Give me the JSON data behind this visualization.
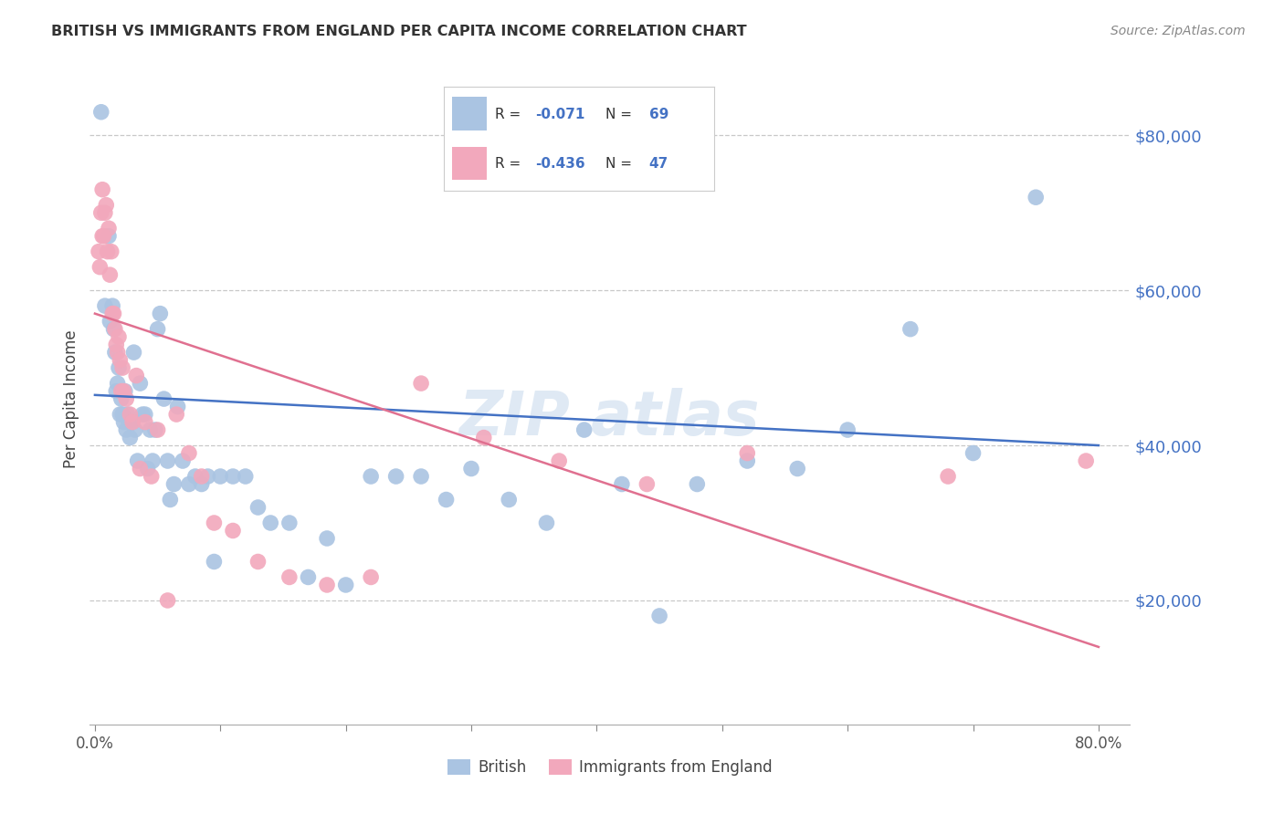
{
  "title": "BRITISH VS IMMIGRANTS FROM ENGLAND PER CAPITA INCOME CORRELATION CHART",
  "source": "Source: ZipAtlas.com",
  "ylabel": "Per Capita Income",
  "ytick_labels": [
    "$20,000",
    "$40,000",
    "$60,000",
    "$80,000"
  ],
  "ytick_values": [
    20000,
    40000,
    60000,
    80000
  ],
  "ylim": [
    4000,
    88000
  ],
  "xlim": [
    -0.004,
    0.825
  ],
  "color_blue": "#aac4e2",
  "color_pink": "#f2a8bc",
  "line_blue": "#4472c4",
  "line_pink": "#e07090",
  "text_color_blue": "#4472c4",
  "grid_color": "#c8c8c8",
  "background": "#ffffff",
  "blue_dots_x": [
    0.005,
    0.011,
    0.015,
    0.016,
    0.017,
    0.018,
    0.019,
    0.02,
    0.021,
    0.022,
    0.023,
    0.024,
    0.025,
    0.026,
    0.027,
    0.028,
    0.03,
    0.031,
    0.032,
    0.034,
    0.036,
    0.038,
    0.04,
    0.042,
    0.044,
    0.046,
    0.048,
    0.05,
    0.052,
    0.055,
    0.058,
    0.06,
    0.063,
    0.066,
    0.07,
    0.075,
    0.08,
    0.085,
    0.09,
    0.095,
    0.1,
    0.11,
    0.12,
    0.13,
    0.14,
    0.155,
    0.17,
    0.185,
    0.2,
    0.22,
    0.24,
    0.26,
    0.28,
    0.3,
    0.33,
    0.36,
    0.39,
    0.42,
    0.45,
    0.48,
    0.52,
    0.56,
    0.6,
    0.65,
    0.7,
    0.75,
    0.008,
    0.012,
    0.014
  ],
  "blue_dots_y": [
    83000,
    67000,
    55000,
    52000,
    47000,
    48000,
    50000,
    44000,
    46000,
    44000,
    43000,
    47000,
    42000,
    44000,
    43000,
    41000,
    43000,
    52000,
    42000,
    38000,
    48000,
    44000,
    44000,
    37000,
    42000,
    38000,
    42000,
    55000,
    57000,
    46000,
    38000,
    33000,
    35000,
    45000,
    38000,
    35000,
    36000,
    35000,
    36000,
    25000,
    36000,
    36000,
    36000,
    32000,
    30000,
    30000,
    23000,
    28000,
    22000,
    36000,
    36000,
    36000,
    33000,
    37000,
    33000,
    30000,
    42000,
    35000,
    18000,
    35000,
    38000,
    37000,
    42000,
    55000,
    39000,
    72000,
    58000,
    56000,
    58000
  ],
  "pink_dots_x": [
    0.003,
    0.004,
    0.005,
    0.006,
    0.006,
    0.007,
    0.008,
    0.009,
    0.01,
    0.011,
    0.012,
    0.013,
    0.014,
    0.015,
    0.016,
    0.017,
    0.018,
    0.019,
    0.02,
    0.021,
    0.022,
    0.023,
    0.025,
    0.028,
    0.03,
    0.033,
    0.036,
    0.04,
    0.045,
    0.05,
    0.058,
    0.065,
    0.075,
    0.085,
    0.095,
    0.11,
    0.13,
    0.155,
    0.185,
    0.22,
    0.26,
    0.31,
    0.37,
    0.44,
    0.52,
    0.68,
    0.79
  ],
  "pink_dots_y": [
    65000,
    63000,
    70000,
    73000,
    67000,
    67000,
    70000,
    71000,
    65000,
    68000,
    62000,
    65000,
    57000,
    57000,
    55000,
    53000,
    52000,
    54000,
    51000,
    47000,
    50000,
    47000,
    46000,
    44000,
    43000,
    49000,
    37000,
    43000,
    36000,
    42000,
    20000,
    44000,
    39000,
    36000,
    30000,
    29000,
    25000,
    23000,
    22000,
    23000,
    48000,
    41000,
    38000,
    35000,
    39000,
    36000,
    38000
  ],
  "blue_trend_x": [
    0.0,
    0.8
  ],
  "blue_trend_y": [
    46500,
    40000
  ],
  "pink_trend_x": [
    0.0,
    0.8
  ],
  "pink_trend_y": [
    57000,
    14000
  ],
  "xtick_positions": [
    0.0,
    0.1,
    0.2,
    0.3,
    0.4,
    0.5,
    0.6,
    0.7,
    0.8
  ],
  "legend_r1_val": "-0.071",
  "legend_r1_n": "69",
  "legend_r2_val": "-0.436",
  "legend_r2_n": "47"
}
